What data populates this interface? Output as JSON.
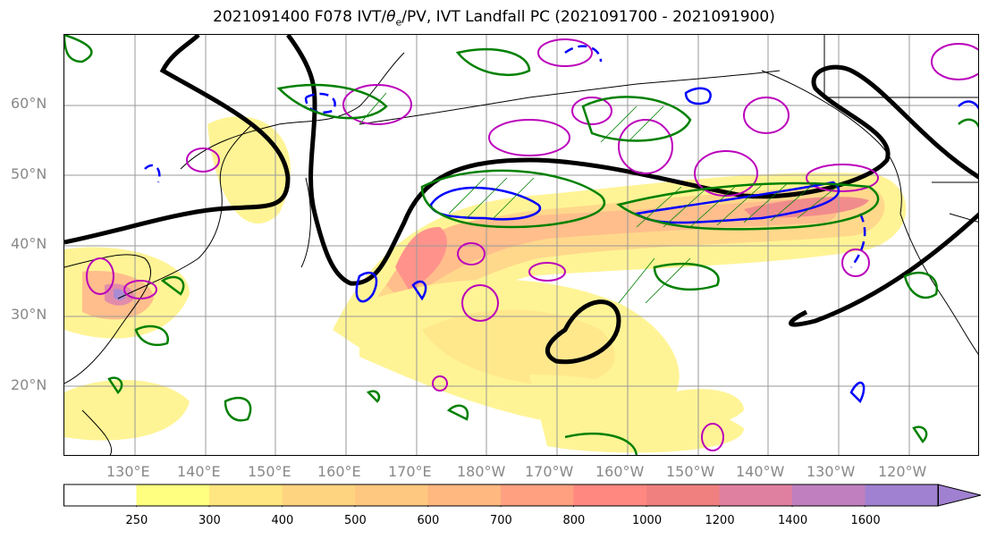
{
  "title": {
    "prefix": "2021091400 F078 IVT/",
    "theta": "θ",
    "theta_sub": "e",
    "suffix": "/PV, IVT Landfall PC (2021091700 - 2021091900)"
  },
  "map": {
    "lat_labels": [
      "60°N",
      "50°N",
      "40°N",
      "30°N",
      "20°N"
    ],
    "lon_labels": [
      "130°E",
      "140°E",
      "150°E",
      "160°E",
      "170°E",
      "180°W",
      "170°W",
      "160°W",
      "150°W",
      "140°W",
      "130°W",
      "120°W"
    ],
    "lat_values": [
      60,
      50,
      40,
      30,
      20
    ],
    "lon_values": [
      130,
      140,
      150,
      160,
      170,
      180,
      190,
      200,
      210,
      220,
      230,
      240
    ],
    "extent": {
      "lon_min": 120,
      "lon_max": 250,
      "lat_min": 10,
      "lat_max": 70
    }
  },
  "colorbar": {
    "levels": [
      "250",
      "300",
      "400",
      "500",
      "600",
      "700",
      "800",
      "1000",
      "1200",
      "1400",
      "1600"
    ],
    "colors": [
      "#ffffff",
      "#ffff80",
      "#ffe680",
      "#ffd480",
      "#ffc880",
      "#ffb880",
      "#ffa080",
      "#ff8880",
      "#f08080",
      "#e080a0",
      "#c080c0",
      "#a080d0"
    ]
  },
  "contour_colors": {
    "pv": "#000000",
    "theta_e": "#bb00bb",
    "blue": "#0000ff",
    "green": "#008000"
  }
}
